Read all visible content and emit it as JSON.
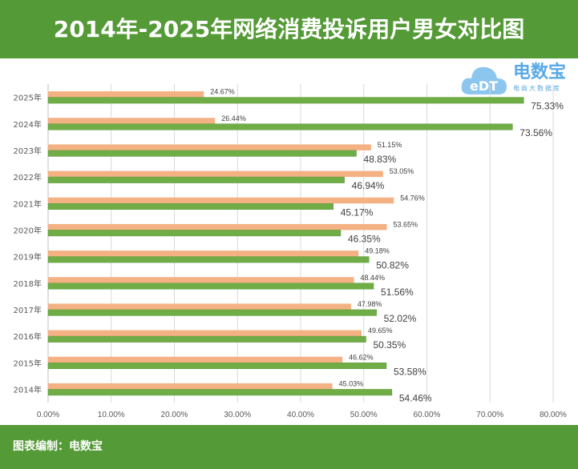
{
  "title": "2014年-2025年网络消费投诉用户男女对比图",
  "footer": "图表编制：电数宝",
  "logo": {
    "text": "电数宝",
    "sub": "电商大数据库",
    "mark": "eDT"
  },
  "colors": {
    "header": "#549a36",
    "orange": "#f4b183",
    "green": "#70ad47",
    "grid": "#d9d9d9"
  },
  "chart_data": {
    "type": "bar",
    "orientation": "horizontal",
    "categories": [
      "2025年",
      "2024年",
      "2023年",
      "2022年",
      "2021年",
      "2020年",
      "2019年",
      "2018年",
      "2017年",
      "2016年",
      "2015年",
      "2014年"
    ],
    "series": [
      {
        "color": "#f4b183",
        "values": [
          24.67,
          26.44,
          51.15,
          53.05,
          54.76,
          53.65,
          49.18,
          48.44,
          47.98,
          49.65,
          46.62,
          45.03
        ]
      },
      {
        "color": "#70ad47",
        "values": [
          75.33,
          73.56,
          48.83,
          46.94,
          45.17,
          46.35,
          50.82,
          51.56,
          52.02,
          50.35,
          53.58,
          54.46
        ]
      }
    ],
    "xlim": [
      0,
      80
    ],
    "xticks": [
      "0.00%",
      "10.00%",
      "20.00%",
      "30.00%",
      "40.00%",
      "50.00%",
      "60.00%",
      "70.00%",
      "80.00%"
    ],
    "grid": true,
    "legend": "none",
    "value_suffix": "%"
  }
}
